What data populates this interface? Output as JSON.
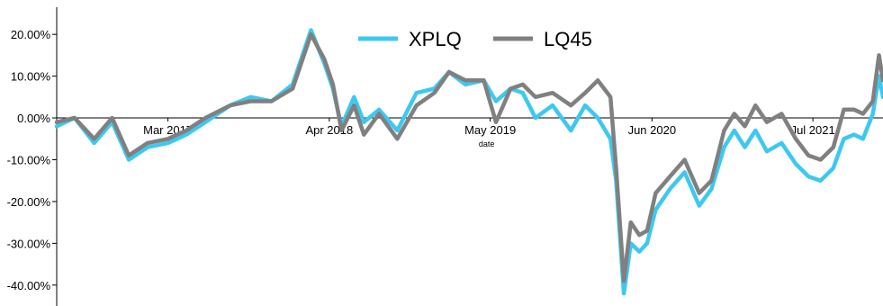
{
  "chart_data": {
    "type": "line",
    "title": "",
    "xlabel": "date",
    "ylabel": "",
    "ylim": [
      -0.45,
      0.265
    ],
    "xlim": [
      "2016-06-01",
      "2021-12-20"
    ],
    "x_ticks": [
      {
        "date": "2017-03-01",
        "label": "Mar 2017"
      },
      {
        "date": "2018-04-01",
        "label": "Apr 2018"
      },
      {
        "date": "2019-05-01",
        "label": "May 2019"
      },
      {
        "date": "2020-06-01",
        "label": "Jun 2020"
      },
      {
        "date": "2021-07-01",
        "label": "Jul 2021"
      }
    ],
    "y_ticks": [
      {
        "value": 0.2,
        "label": "20.00%"
      },
      {
        "value": 0.1,
        "label": "10.00%"
      },
      {
        "value": 0.0,
        "label": "0.00%"
      },
      {
        "value": -0.1,
        "label": "-10.00%"
      },
      {
        "value": -0.2,
        "label": "-20.00%"
      },
      {
        "value": -0.3,
        "label": "-30.00%"
      },
      {
        "value": -0.4,
        "label": "-40.00%"
      }
    ],
    "grid": false,
    "legend": "top-center",
    "series": [
      {
        "name": "XPLQ",
        "color": "#3ec8f0",
        "points": [
          [
            "2016-06-01",
            -0.02
          ],
          [
            "2016-07-15",
            0.0
          ],
          [
            "2016-09-01",
            -0.06
          ],
          [
            "2016-10-15",
            -0.01
          ],
          [
            "2016-11-25",
            -0.1
          ],
          [
            "2017-01-10",
            -0.07
          ],
          [
            "2017-03-01",
            -0.06
          ],
          [
            "2017-04-15",
            -0.04
          ],
          [
            "2017-06-01",
            -0.01
          ],
          [
            "2017-08-01",
            0.03
          ],
          [
            "2017-09-20",
            0.05
          ],
          [
            "2017-11-10",
            0.04
          ],
          [
            "2018-01-01",
            0.08
          ],
          [
            "2018-02-15",
            0.21
          ],
          [
            "2018-03-20",
            0.13
          ],
          [
            "2018-04-10",
            0.07
          ],
          [
            "2018-05-01",
            -0.02
          ],
          [
            "2018-06-01",
            0.05
          ],
          [
            "2018-06-25",
            -0.01
          ],
          [
            "2018-08-01",
            0.02
          ],
          [
            "2018-09-15",
            -0.03
          ],
          [
            "2018-11-01",
            0.06
          ],
          [
            "2018-12-15",
            0.07
          ],
          [
            "2019-01-20",
            0.11
          ],
          [
            "2019-03-01",
            0.08
          ],
          [
            "2019-04-15",
            0.09
          ],
          [
            "2019-05-15",
            0.04
          ],
          [
            "2019-06-20",
            0.07
          ],
          [
            "2019-07-20",
            0.06
          ],
          [
            "2019-08-20",
            0.0
          ],
          [
            "2019-10-01",
            0.03
          ],
          [
            "2019-11-15",
            -0.03
          ],
          [
            "2019-12-20",
            0.03
          ],
          [
            "2020-01-20",
            0.0
          ],
          [
            "2020-02-20",
            -0.05
          ],
          [
            "2020-03-05",
            -0.15
          ],
          [
            "2020-03-24",
            -0.42
          ],
          [
            "2020-04-10",
            -0.3
          ],
          [
            "2020-05-01",
            -0.32
          ],
          [
            "2020-05-20",
            -0.3
          ],
          [
            "2020-06-10",
            -0.22
          ],
          [
            "2020-07-15",
            -0.17
          ],
          [
            "2020-08-20",
            -0.13
          ],
          [
            "2020-09-25",
            -0.21
          ],
          [
            "2020-10-25",
            -0.17
          ],
          [
            "2020-11-25",
            -0.07
          ],
          [
            "2020-12-20",
            -0.03
          ],
          [
            "2021-01-15",
            -0.07
          ],
          [
            "2021-02-10",
            -0.03
          ],
          [
            "2021-03-10",
            -0.08
          ],
          [
            "2021-04-15",
            -0.06
          ],
          [
            "2021-05-20",
            -0.11
          ],
          [
            "2021-06-20",
            -0.14
          ],
          [
            "2021-07-20",
            -0.15
          ],
          [
            "2021-08-20",
            -0.12
          ],
          [
            "2021-09-15",
            -0.05
          ],
          [
            "2021-10-10",
            -0.04
          ],
          [
            "2021-11-01",
            -0.05
          ],
          [
            "2021-11-25",
            0.01
          ],
          [
            "2021-12-10",
            0.1
          ],
          [
            "2021-12-20",
            0.05
          ]
        ]
      },
      {
        "name": "LQ45",
        "color": "#808080",
        "points": [
          [
            "2016-06-01",
            -0.01
          ],
          [
            "2016-07-15",
            0.0
          ],
          [
            "2016-09-01",
            -0.05
          ],
          [
            "2016-10-15",
            0.0
          ],
          [
            "2016-11-25",
            -0.09
          ],
          [
            "2017-01-10",
            -0.06
          ],
          [
            "2017-03-01",
            -0.05
          ],
          [
            "2017-04-15",
            -0.03
          ],
          [
            "2017-06-01",
            0.0
          ],
          [
            "2017-08-01",
            0.03
          ],
          [
            "2017-09-20",
            0.04
          ],
          [
            "2017-11-10",
            0.04
          ],
          [
            "2018-01-01",
            0.07
          ],
          [
            "2018-02-15",
            0.2
          ],
          [
            "2018-03-20",
            0.14
          ],
          [
            "2018-04-10",
            0.08
          ],
          [
            "2018-05-01",
            -0.03
          ],
          [
            "2018-06-01",
            0.03
          ],
          [
            "2018-06-25",
            -0.04
          ],
          [
            "2018-08-01",
            0.01
          ],
          [
            "2018-09-15",
            -0.05
          ],
          [
            "2018-11-01",
            0.03
          ],
          [
            "2018-12-15",
            0.06
          ],
          [
            "2019-01-20",
            0.11
          ],
          [
            "2019-03-01",
            0.09
          ],
          [
            "2019-04-15",
            0.09
          ],
          [
            "2019-05-15",
            -0.01
          ],
          [
            "2019-06-20",
            0.07
          ],
          [
            "2019-07-20",
            0.08
          ],
          [
            "2019-08-20",
            0.05
          ],
          [
            "2019-10-01",
            0.06
          ],
          [
            "2019-11-15",
            0.03
          ],
          [
            "2019-12-20",
            0.06
          ],
          [
            "2020-01-20",
            0.09
          ],
          [
            "2020-02-20",
            0.05
          ],
          [
            "2020-03-05",
            -0.12
          ],
          [
            "2020-03-24",
            -0.39
          ],
          [
            "2020-04-10",
            -0.25
          ],
          [
            "2020-05-01",
            -0.28
          ],
          [
            "2020-05-20",
            -0.27
          ],
          [
            "2020-06-10",
            -0.18
          ],
          [
            "2020-07-15",
            -0.14
          ],
          [
            "2020-08-20",
            -0.1
          ],
          [
            "2020-09-25",
            -0.18
          ],
          [
            "2020-10-25",
            -0.15
          ],
          [
            "2020-11-25",
            -0.03
          ],
          [
            "2020-12-20",
            0.01
          ],
          [
            "2021-01-15",
            -0.02
          ],
          [
            "2021-02-10",
            0.03
          ],
          [
            "2021-03-10",
            -0.01
          ],
          [
            "2021-04-15",
            0.01
          ],
          [
            "2021-05-20",
            -0.05
          ],
          [
            "2021-06-20",
            -0.09
          ],
          [
            "2021-07-20",
            -0.1
          ],
          [
            "2021-08-20",
            -0.07
          ],
          [
            "2021-09-15",
            0.02
          ],
          [
            "2021-10-10",
            0.02
          ],
          [
            "2021-11-01",
            0.01
          ],
          [
            "2021-11-25",
            0.04
          ],
          [
            "2021-12-10",
            0.15
          ],
          [
            "2021-12-20",
            0.09
          ]
        ]
      }
    ]
  }
}
